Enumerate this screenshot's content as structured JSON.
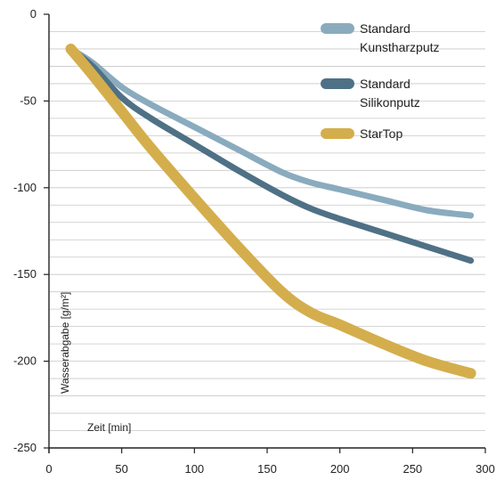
{
  "chart_data": {
    "type": "line",
    "xlabel": "Zeit [min]",
    "ylabel": "Wasserabgabe [g/m²]",
    "xlim": [
      0,
      300
    ],
    "ylim": [
      -250,
      0
    ],
    "x_ticks": [
      0,
      50,
      100,
      150,
      200,
      250,
      300
    ],
    "y_ticks": [
      0,
      -50,
      -100,
      -150,
      -200,
      -250
    ],
    "minor_grid_step": 10,
    "grid": true,
    "legend_position": "top-right",
    "series": [
      {
        "name_lines": [
          "Standard",
          "Kunstharzputz"
        ],
        "color": "#8aabbe",
        "points": [
          [
            15,
            -20
          ],
          [
            30,
            -28
          ],
          [
            50,
            -42
          ],
          [
            70,
            -52
          ],
          [
            100,
            -65
          ],
          [
            130,
            -78
          ],
          [
            160,
            -91
          ],
          [
            180,
            -97
          ],
          [
            200,
            -101
          ],
          [
            230,
            -107
          ],
          [
            260,
            -113
          ],
          [
            290,
            -116
          ]
        ]
      },
      {
        "name_lines": [
          "Standard",
          "Silikonputz"
        ],
        "color": "#4f7185",
        "points": [
          [
            15,
            -20
          ],
          [
            30,
            -30
          ],
          [
            50,
            -48
          ],
          [
            70,
            -60
          ],
          [
            100,
            -75
          ],
          [
            130,
            -90
          ],
          [
            160,
            -104
          ],
          [
            180,
            -112
          ],
          [
            200,
            -118
          ],
          [
            230,
            -126
          ],
          [
            260,
            -134
          ],
          [
            290,
            -142
          ]
        ]
      },
      {
        "name_lines": [
          "StarTop"
        ],
        "color": "#d4ae4c",
        "points": [
          [
            15,
            -20
          ],
          [
            30,
            -35
          ],
          [
            50,
            -56
          ],
          [
            70,
            -77
          ],
          [
            100,
            -106
          ],
          [
            130,
            -134
          ],
          [
            160,
            -160
          ],
          [
            180,
            -172
          ],
          [
            200,
            -179
          ],
          [
            230,
            -190
          ],
          [
            260,
            -200
          ],
          [
            290,
            -207
          ]
        ]
      }
    ]
  }
}
